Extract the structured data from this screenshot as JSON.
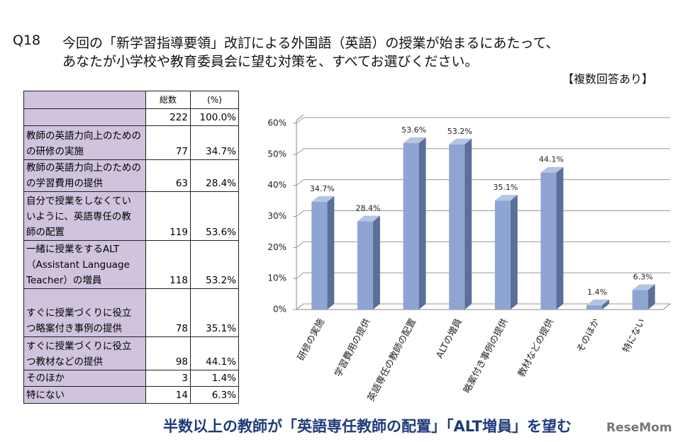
{
  "question": {
    "number": "Q18",
    "lines": [
      "今回の「新学習指導要領」改訂による外国語（英語）の授業が始まるにあたって、",
      "あなたが小学校や教育委員会に望む対策を、すべてお選びください。"
    ],
    "note": "【複数回答あり】"
  },
  "table": {
    "header": [
      "総数",
      "(%)"
    ],
    "total": {
      "count": 222,
      "percent": "100.0%"
    },
    "rows": [
      {
        "label": [
          "教師の英語力向上のための",
          "の研修の実施"
        ],
        "count": 77,
        "percent": "34.7%"
      },
      {
        "label": [
          "教師の英語力向上のための",
          "の学習費用の提供"
        ],
        "count": 63,
        "percent": "28.4%"
      },
      {
        "label": [
          "自分で授業をしなくてい",
          "いように、英語専任の教",
          "師の配置"
        ],
        "count": 119,
        "percent": "53.6%"
      },
      {
        "label": [
          "一緒に授業をするALT",
          "（Assistant Language",
          "Teacher）の増員"
        ],
        "count": 118,
        "percent": "53.2%"
      },
      {
        "label": [
          "すぐに授業づくりに役立",
          "つ略案付き事例の提供"
        ],
        "count": 78,
        "percent": "35.1%"
      },
      {
        "label": [
          "すぐに授業づくりに役立",
          "つ教材などの提供"
        ],
        "count": 98,
        "percent": "44.1%"
      },
      {
        "label": [
          "そのほか"
        ],
        "count": 3,
        "percent": "1.4%"
      },
      {
        "label": [
          "特にない"
        ],
        "count": 14,
        "percent": "6.3%"
      }
    ]
  },
  "chart_data": {
    "type": "bar",
    "categories": [
      "研修の実施",
      "学習費用の提供",
      "英語専任の教師の配置",
      "ALTの増員",
      "略案付き事例の提供",
      "教材などの提供",
      "そのほか",
      "特にない"
    ],
    "values": [
      34.7,
      28.4,
      53.6,
      53.2,
      35.1,
      44.1,
      1.4,
      6.3
    ],
    "value_labels": [
      "34.7%",
      "28.4%",
      "53.6%",
      "53.2%",
      "35.1%",
      "44.1%",
      "1.4%",
      "6.3%"
    ],
    "color": "#8ea5d3",
    "ylim": [
      0,
      60
    ],
    "yticks": [
      {
        "value": 0,
        "label": "0%"
      },
      {
        "value": 10,
        "label": "10%"
      },
      {
        "value": 20,
        "label": "20%"
      },
      {
        "value": 30,
        "label": "30%"
      },
      {
        "value": 40,
        "label": "40%"
      },
      {
        "value": 50,
        "label": "50%"
      },
      {
        "value": 60,
        "label": "60%"
      }
    ],
    "grid": true
  },
  "footer": {
    "headline": "半数以上の教師が「英語専任教師の配置」「ALT増員」を望む",
    "logo": "ReseMom"
  }
}
